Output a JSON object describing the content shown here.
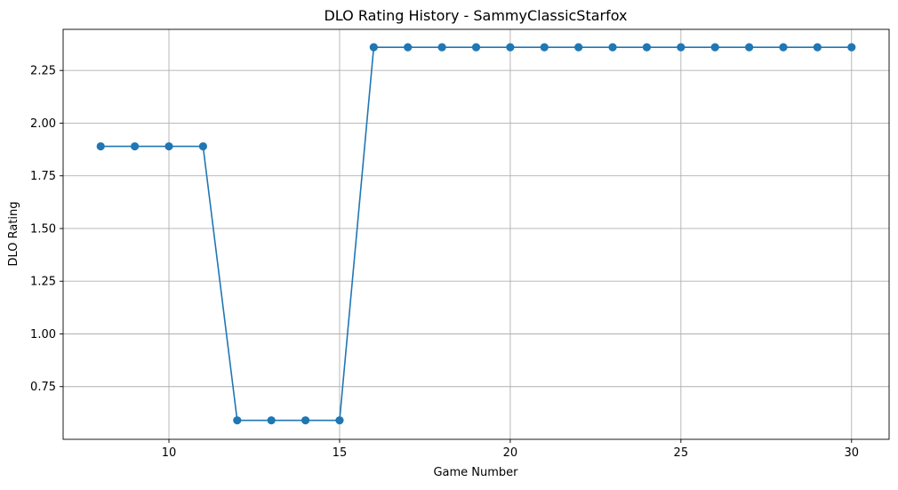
{
  "chart_data": {
    "type": "line",
    "title": "DLO Rating History - SammyClassicStarfox",
    "xlabel": "Game Number",
    "ylabel": "DLO Rating",
    "xlim": [
      6.9,
      31.1
    ],
    "ylim": [
      0.5,
      2.445
    ],
    "xticks": [
      10,
      15,
      20,
      25,
      30
    ],
    "xtick_labels": [
      "10",
      "15",
      "20",
      "25",
      "30"
    ],
    "yticks": [
      0.75,
      1.0,
      1.25,
      1.5,
      1.75,
      2.0,
      2.25
    ],
    "ytick_labels": [
      "0.75",
      "1.00",
      "1.25",
      "1.50",
      "1.75",
      "2.00",
      "2.25"
    ],
    "grid": true,
    "legend": "none",
    "series": [
      {
        "color": "#1f77b4",
        "marker": "circle",
        "x": [
          8,
          9,
          10,
          11,
          12,
          13,
          14,
          15,
          16,
          17,
          18,
          19,
          20,
          21,
          22,
          23,
          24,
          25,
          26,
          27,
          28,
          29,
          30
        ],
        "y": [
          1.89,
          1.89,
          1.89,
          1.89,
          0.59,
          0.59,
          0.59,
          0.59,
          2.36,
          2.36,
          2.36,
          2.36,
          2.36,
          2.36,
          2.36,
          2.36,
          2.36,
          2.36,
          2.36,
          2.36,
          2.36,
          2.36,
          2.36
        ]
      }
    ]
  }
}
